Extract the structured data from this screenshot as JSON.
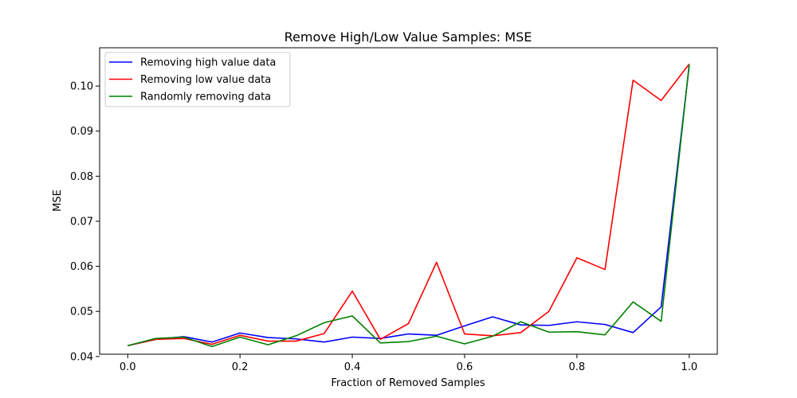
{
  "chart_data": {
    "type": "line",
    "title": "Remove High/Low Value Samples: MSE",
    "xlabel": "Fraction of Removed Samples",
    "ylabel": "MSE",
    "xlim": [
      -0.05,
      1.05
    ],
    "ylim": [
      0.0405,
      0.1085
    ],
    "xticks": [
      0.0,
      0.2,
      0.4,
      0.6,
      0.8,
      1.0
    ],
    "xtick_labels": [
      "0.0",
      "0.2",
      "0.4",
      "0.6",
      "0.8",
      "1.0"
    ],
    "yticks": [
      0.04,
      0.05,
      0.06,
      0.07,
      0.08,
      0.09,
      0.1
    ],
    "ytick_labels": [
      "0.04",
      "0.05",
      "0.06",
      "0.07",
      "0.08",
      "0.09",
      "0.10"
    ],
    "grid": false,
    "legend_position": "top-left",
    "x": [
      0.0,
      0.05,
      0.1,
      0.15,
      0.2,
      0.25,
      0.3,
      0.35,
      0.4,
      0.45,
      0.5,
      0.55,
      0.6,
      0.65,
      0.7,
      0.75,
      0.8,
      0.85,
      0.9,
      0.95,
      1.0
    ],
    "series": [
      {
        "name": "Removing high value data",
        "color": "#0000ff",
        "values": [
          0.0424,
          0.0438,
          0.0444,
          0.0432,
          0.0452,
          0.0442,
          0.0439,
          0.0432,
          0.0443,
          0.044,
          0.045,
          0.0447,
          0.0468,
          0.0488,
          0.047,
          0.0469,
          0.0477,
          0.0471,
          0.0453,
          0.051,
          0.1045
        ]
      },
      {
        "name": "Removing low value data",
        "color": "#ff0000",
        "values": [
          0.0424,
          0.0438,
          0.044,
          0.0427,
          0.0447,
          0.0434,
          0.0434,
          0.0451,
          0.0545,
          0.0438,
          0.0473,
          0.0609,
          0.045,
          0.0446,
          0.0453,
          0.05,
          0.0619,
          0.0593,
          0.1013,
          0.0968,
          0.1049
        ]
      },
      {
        "name": "Randomly removing data",
        "color": "#008000",
        "values": [
          0.0424,
          0.044,
          0.0443,
          0.0422,
          0.0443,
          0.0426,
          0.0446,
          0.0475,
          0.049,
          0.043,
          0.0433,
          0.0445,
          0.0428,
          0.0445,
          0.0477,
          0.0454,
          0.0455,
          0.0448,
          0.0521,
          0.0478,
          0.1048
        ]
      }
    ]
  }
}
